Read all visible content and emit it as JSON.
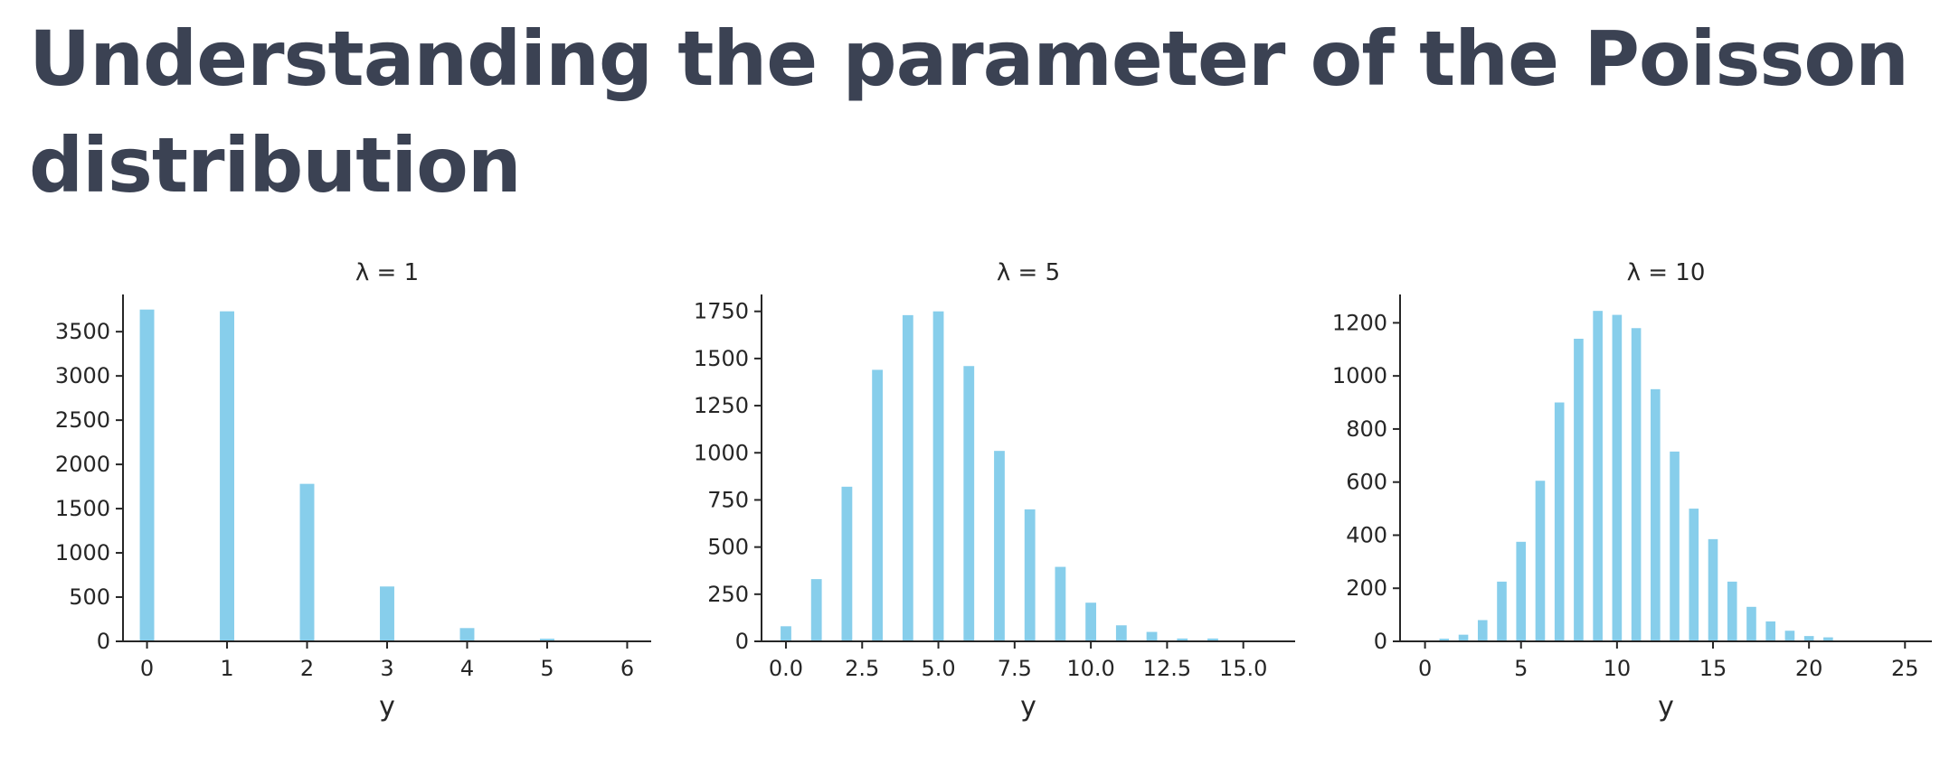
{
  "page": {
    "title": "Understanding the parameter of the Poisson distribution"
  },
  "style": {
    "bar_color": "#87ceeb",
    "title_color": "#3b4253",
    "axis_color": "#262626"
  },
  "chart_data": [
    {
      "type": "bar",
      "title": "λ = 1",
      "xlabel": "y",
      "ylabel": "",
      "x": [
        0,
        1,
        2,
        3,
        4,
        5
      ],
      "values": [
        3750,
        3730,
        1780,
        620,
        150,
        30
      ],
      "xlim": [
        -0.3,
        6.3
      ],
      "ylim": [
        0,
        3900
      ],
      "xticks": [
        0,
        1,
        2,
        3,
        4,
        5,
        6
      ],
      "xtick_labels": [
        "0",
        "1",
        "2",
        "3",
        "4",
        "5",
        "6"
      ],
      "yticks": [
        0,
        500,
        1000,
        1500,
        2000,
        2500,
        3000,
        3500
      ],
      "ytick_labels": [
        "0",
        "500",
        "1000",
        "1500",
        "2000",
        "2500",
        "3000",
        "3500"
      ],
      "bar_width": 0.18,
      "grid": false,
      "spines": "left-bottom"
    },
    {
      "type": "bar",
      "title": "λ = 5",
      "xlabel": "y",
      "ylabel": "",
      "x": [
        0,
        1,
        2,
        3,
        4,
        5,
        6,
        7,
        8,
        9,
        10,
        11,
        12,
        13,
        14
      ],
      "values": [
        80,
        330,
        820,
        1440,
        1730,
        1750,
        1460,
        1010,
        700,
        395,
        205,
        85,
        50,
        15,
        15
      ],
      "xlim": [
        -0.8,
        16.7
      ],
      "ylim": [
        0,
        1830
      ],
      "xticks": [
        0,
        2.5,
        5,
        7.5,
        10,
        12.5,
        15
      ],
      "xtick_labels": [
        "0.0",
        "2.5",
        "5.0",
        "7.5",
        "10.0",
        "12.5",
        "15.0"
      ],
      "yticks": [
        0,
        250,
        500,
        750,
        1000,
        1250,
        1500,
        1750
      ],
      "ytick_labels": [
        "0",
        "250",
        "500",
        "750",
        "1000",
        "1250",
        "1500",
        "1750"
      ],
      "bar_width": 0.35,
      "grid": false,
      "spines": "left-bottom"
    },
    {
      "type": "bar",
      "title": "λ = 10",
      "xlabel": "y",
      "ylabel": "",
      "x": [
        1,
        2,
        3,
        4,
        5,
        6,
        7,
        8,
        9,
        10,
        11,
        12,
        13,
        14,
        15,
        16,
        17,
        18,
        19,
        20,
        21
      ],
      "values": [
        10,
        25,
        80,
        225,
        375,
        605,
        900,
        1140,
        1245,
        1230,
        1180,
        950,
        715,
        500,
        385,
        225,
        130,
        75,
        40,
        20,
        15
      ],
      "xlim": [
        -1.3,
        26.4
      ],
      "ylim": [
        0,
        1300
      ],
      "xticks": [
        0,
        5,
        10,
        15,
        20,
        25
      ],
      "xtick_labels": [
        "0",
        "5",
        "10",
        "15",
        "20",
        "25"
      ],
      "yticks": [
        0,
        200,
        400,
        600,
        800,
        1000,
        1200
      ],
      "ytick_labels": [
        "0",
        "200",
        "400",
        "600",
        "800",
        "1000",
        "1200"
      ],
      "bar_width": 0.5,
      "grid": false,
      "spines": "left-bottom"
    }
  ]
}
